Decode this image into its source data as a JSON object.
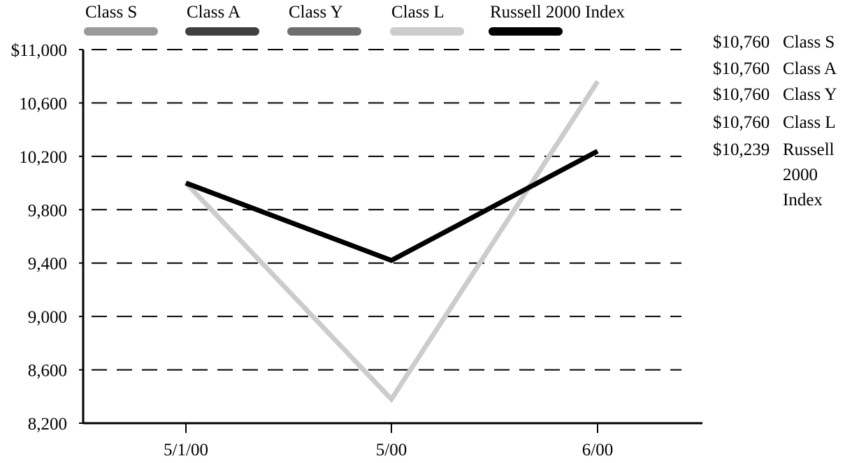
{
  "chart_data": {
    "type": "line",
    "title": "",
    "xlabel": "",
    "ylabel": "",
    "categories": [
      "5/1/00",
      "5/00",
      "6/00"
    ],
    "ylim": [
      8200,
      11000
    ],
    "yticks": [
      8200,
      8600,
      9000,
      9400,
      9800,
      10200,
      10600,
      11000
    ],
    "ytick_labels": [
      "8,200",
      "8,600",
      "9,000",
      "9,400",
      "9,800",
      "10,200",
      "10,600",
      "$11,000"
    ],
    "grid": "horizontal-dashed",
    "legend_position": "top",
    "series": [
      {
        "name": "Class S",
        "values": [
          10000,
          8380,
          10760
        ],
        "color": "#9a9a9a"
      },
      {
        "name": "Class A",
        "values": [
          10000,
          8380,
          10760
        ],
        "color": "#404040"
      },
      {
        "name": "Class Y",
        "values": [
          10000,
          8380,
          10760
        ],
        "color": "#6e6e6e"
      },
      {
        "name": "Class L",
        "values": [
          10000,
          8380,
          10760
        ],
        "color": "#cccccc"
      },
      {
        "name": "Russell 2000 Index",
        "values": [
          10000,
          9420,
          10239
        ],
        "color": "#000000"
      }
    ],
    "end_labels": [
      {
        "value": "$10,760",
        "lines": [
          "Class S"
        ]
      },
      {
        "value": "$10,760",
        "lines": [
          "Class A"
        ]
      },
      {
        "value": "$10,760",
        "lines": [
          "Class Y"
        ]
      },
      {
        "value": "$10,760",
        "lines": [
          "Class L"
        ]
      },
      {
        "value": "$10,239",
        "lines": [
          "Russell",
          "2000",
          "Index"
        ]
      }
    ]
  }
}
